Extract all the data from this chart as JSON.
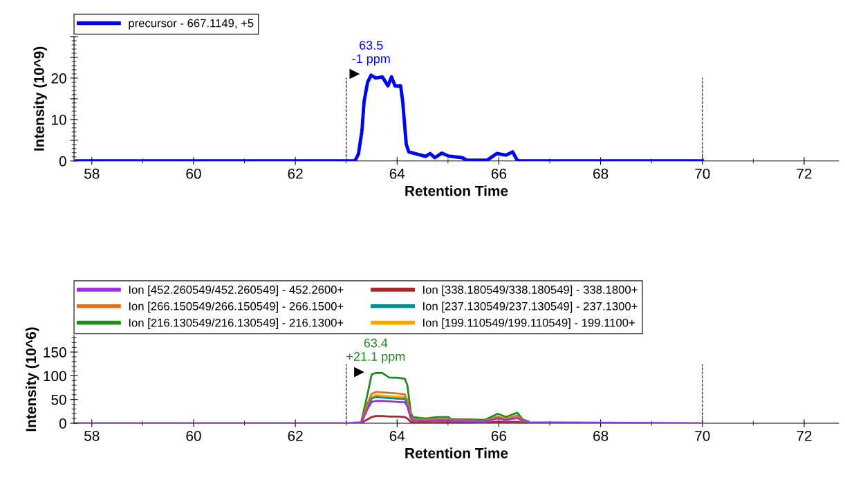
{
  "chart_data": [
    {
      "type": "line",
      "xlabel": "Retention Time",
      "ylabel": "Intensity (10^9)",
      "x": [
        57.7,
        63.0,
        63.17,
        63.24,
        63.31,
        63.35,
        63.42,
        63.49,
        63.58,
        63.71,
        63.82,
        63.89,
        63.96,
        64.07,
        64.11,
        64.18,
        64.23,
        64.38,
        64.56,
        64.65,
        64.74,
        64.88,
        65.01,
        65.28,
        65.37,
        65.77,
        65.96,
        66.14,
        66.27,
        66.36,
        66.4,
        70.0
      ],
      "series": [
        {
          "name": "precursor - 667.1149, +5",
          "color": "#0000ff",
          "values": [
            0,
            0,
            0,
            1.7,
            7.4,
            14.3,
            19,
            20.7,
            20,
            20.3,
            18.1,
            20.3,
            18.1,
            18.1,
            14.3,
            4,
            2.2,
            1.7,
            1.1,
            1.8,
            0.8,
            1.9,
            1.2,
            0.8,
            0.2,
            0.2,
            1.8,
            1.4,
            2.2,
            0.2,
            0,
            0
          ]
        }
      ],
      "annotations": [
        "63.5\n-1 ppm"
      ],
      "ref_lines": [
        {
          "axis": "x",
          "value": 63.0,
          "color": "#000000",
          "line_style": "dashed"
        },
        {
          "axis": "x",
          "value": 70.0,
          "color": "#000000",
          "line_style": "dashed"
        }
      ],
      "xlim": [
        57.65,
        72.68
      ],
      "xticks": [
        58,
        60,
        62,
        64,
        66,
        68,
        70,
        72
      ],
      "ylim": [
        0,
        30
      ],
      "yticks": [
        0,
        {
          "value": 5,
          "label": null
        },
        10,
        {
          "value": 15,
          "label": null
        },
        20,
        {
          "value": 25,
          "label": null
        },
        {
          "value": 30,
          "label": null
        }
      ],
      "legend": "top left",
      "grid": false,
      "line_style": "solid"
    },
    {
      "type": "line",
      "xlabel": "Retention Time",
      "ylabel": "Intensity (10^6)",
      "x": [
        57.7,
        63.0,
        63.3,
        63.42,
        63.5,
        63.58,
        63.71,
        63.85,
        63.99,
        64.15,
        64.2,
        64.27,
        64.31,
        64.56,
        64.78,
        65.01,
        65.06,
        65.37,
        65.72,
        65.98,
        66.14,
        66.36,
        66.47,
        66.58,
        70.0
      ],
      "series": [
        {
          "name": "Ion [452.260549/452.260549] - 452.2600+",
          "color": "#9933dd",
          "values": [
            0,
            0,
            2,
            30,
            45,
            47,
            47,
            46,
            45,
            44,
            36,
            10,
            6,
            4,
            6,
            6,
            4,
            4,
            3,
            10,
            6,
            11,
            4,
            2,
            0
          ]
        },
        {
          "name": "Ion [338.180549/338.180549] - 338.1800+",
          "color": "#a52a2a",
          "values": [
            null,
            null,
            1,
            8,
            13,
            15,
            15,
            14,
            14,
            13,
            10,
            3,
            2,
            1,
            2,
            2,
            1,
            1,
            1,
            3,
            2,
            3,
            1,
            0,
            null
          ]
        },
        {
          "name": "Ion [266.150549/266.150549] - 266.1500+",
          "color": "#e0701e",
          "values": [
            null,
            null,
            3,
            42,
            62,
            66,
            65,
            64,
            63,
            61,
            49,
            15,
            9,
            7,
            9,
            9,
            6,
            6,
            5,
            14,
            9,
            16,
            6,
            3,
            null
          ]
        },
        {
          "name": "Ion [237.130549/237.130549] - 237.1300+",
          "color": "#009090",
          "values": [
            null,
            null,
            null,
            34,
            52,
            55,
            54,
            53,
            52,
            51,
            41,
            null,
            null,
            null,
            null,
            null,
            null,
            null,
            null,
            null,
            null,
            null,
            null,
            null,
            null
          ]
        },
        {
          "name": "Ion [216.130549/216.130549] - 216.1300+",
          "color": "#1e8c1e",
          "values": [
            null,
            null,
            5,
            62,
            103,
            106,
            106,
            96,
            96,
            94,
            81,
            22,
            13,
            10,
            13,
            13,
            8,
            8,
            7,
            20,
            13,
            22,
            8,
            4,
            null
          ]
        },
        {
          "name": "Ion [199.110549/199.110549] - 199.1100+",
          "color": "#ffa500",
          "values": [
            null,
            null,
            null,
            null,
            56,
            59,
            58,
            57,
            56,
            55,
            null,
            null,
            null,
            null,
            null,
            null,
            null,
            null,
            null,
            null,
            null,
            null,
            null,
            null,
            null
          ]
        }
      ],
      "annotations": [
        "63.4\n+21.1 ppm"
      ],
      "ref_lines": [
        {
          "axis": "x",
          "value": 63.0,
          "color": "#000000",
          "line_style": "dashed"
        },
        {
          "axis": "x",
          "value": 70.0,
          "color": "#000000",
          "line_style": "dashed"
        }
      ],
      "xlim": [
        57.65,
        72.68
      ],
      "xticks": [
        58,
        60,
        62,
        64,
        66,
        68,
        70,
        72
      ],
      "ylim": [
        0,
        185
      ],
      "yticks": [
        0,
        50,
        100,
        150
      ],
      "legend": "top left",
      "grid": false,
      "line_style": "solid"
    }
  ]
}
